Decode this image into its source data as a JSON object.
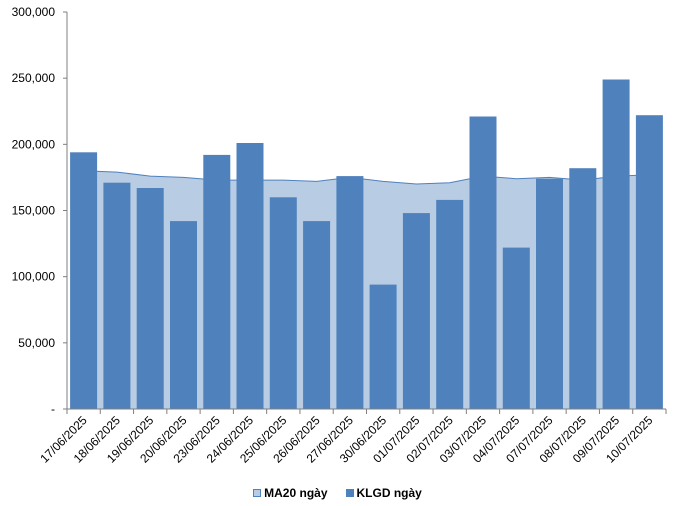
{
  "chart_data": {
    "type": "bar",
    "categories": [
      "17/06/2025",
      "18/06/2025",
      "19/06/2025",
      "20/06/2025",
      "23/06/2025",
      "24/06/2025",
      "25/06/2025",
      "26/06/2025",
      "27/06/2025",
      "30/06/2025",
      "01/07/2025",
      "02/07/2025",
      "03/07/2025",
      "04/07/2025",
      "07/07/2025",
      "08/07/2025",
      "09/07/2025",
      "10/07/2025"
    ],
    "series": [
      {
        "name": "MA20 ngày",
        "kind": "area",
        "color": "#b8cce4",
        "line_color": "#4f81bd",
        "values": [
          180000,
          179000,
          176000,
          175000,
          173000,
          173000,
          173000,
          172000,
          175000,
          172000,
          170000,
          171000,
          176000,
          174000,
          175000,
          173000,
          176000,
          177000
        ]
      },
      {
        "name": "KLGD ngày",
        "kind": "bar",
        "color": "#4f81bd",
        "values": [
          194000,
          171000,
          167000,
          142000,
          192000,
          201000,
          160000,
          142000,
          176000,
          94000,
          148000,
          158000,
          221000,
          122000,
          174000,
          182000,
          249000,
          222000
        ]
      }
    ],
    "y_ticks": [
      "-",
      "50,000",
      "100,000",
      "150,000",
      "200,000",
      "250,000",
      "300,000"
    ],
    "ylim": [
      0,
      300000
    ],
    "legend_position": "bottom",
    "grid": false
  }
}
